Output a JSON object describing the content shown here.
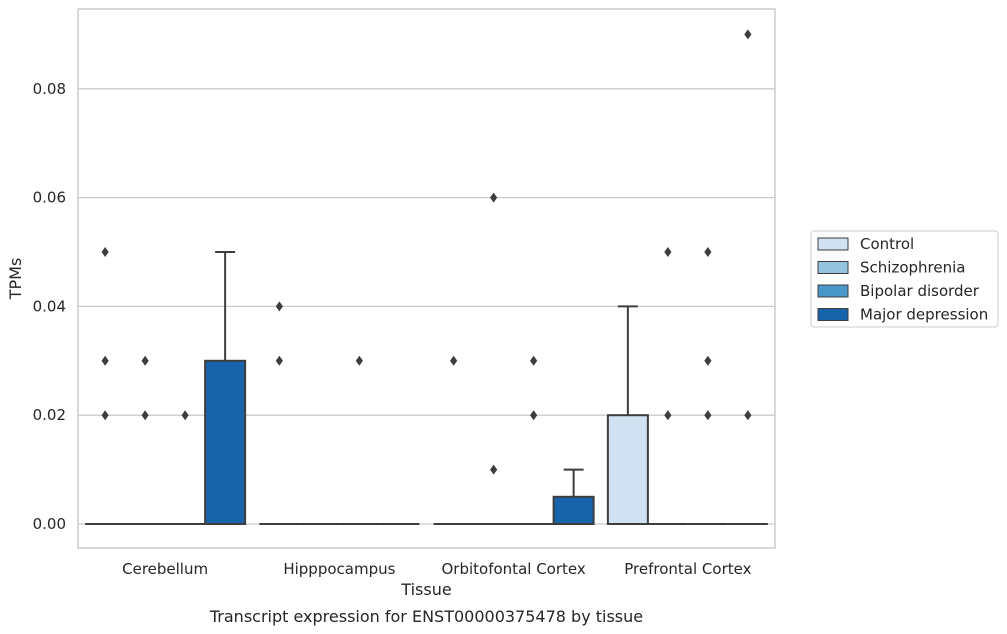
{
  "chart_data": {
    "type": "box",
    "title": "Transcript expression for ENST00000375478 by tissue",
    "xlabel": "Tissue",
    "ylabel": "TPMs",
    "ylim": [
      -0.0045,
      0.0945
    ],
    "yticks": [
      "0.00",
      "0.02",
      "0.04",
      "0.06",
      "0.08"
    ],
    "ytick_values": [
      0,
      0.02,
      0.04,
      0.06,
      0.08
    ],
    "grid": true,
    "legend_position": "right",
    "categories": [
      "Cerebellum",
      "Hipppocampus",
      "Orbitofontal Cortex",
      "Prefrontal Cortex"
    ],
    "series": [
      {
        "name": "Control",
        "color": "#d0e1f2",
        "boxes": [
          {
            "q1": 0,
            "median": 0,
            "q3": 0,
            "whisker_low": 0,
            "whisker_high": 0,
            "outliers": [
              0.02,
              0.03,
              0.05
            ]
          },
          {
            "q1": 0,
            "median": 0,
            "q3": 0,
            "whisker_low": 0,
            "whisker_high": 0,
            "outliers": [
              0.03,
              0.04
            ]
          },
          {
            "q1": 0,
            "median": 0,
            "q3": 0,
            "whisker_low": 0,
            "whisker_high": 0,
            "outliers": [
              0.03
            ]
          },
          {
            "q1": 0,
            "median": 0,
            "q3": 0.02,
            "whisker_low": 0,
            "whisker_high": 0.04,
            "outliers": []
          }
        ]
      },
      {
        "name": "Schizophrenia",
        "color": "#94c4df",
        "boxes": [
          {
            "q1": 0,
            "median": 0,
            "q3": 0,
            "whisker_low": 0,
            "whisker_high": 0,
            "outliers": [
              0.02,
              0.03
            ]
          },
          {
            "q1": 0,
            "median": 0,
            "q3": 0,
            "whisker_low": 0,
            "whisker_high": 0,
            "outliers": []
          },
          {
            "q1": 0,
            "median": 0,
            "q3": 0,
            "whisker_low": 0,
            "whisker_high": 0,
            "outliers": [
              0.01,
              0.06
            ]
          },
          {
            "q1": 0,
            "median": 0,
            "q3": 0,
            "whisker_low": 0,
            "whisker_high": 0,
            "outliers": [
              0.02,
              0.05
            ]
          }
        ]
      },
      {
        "name": "Bipolar disorder",
        "color": "#4a98c9",
        "boxes": [
          {
            "q1": 0,
            "median": 0,
            "q3": 0,
            "whisker_low": 0,
            "whisker_high": 0,
            "outliers": [
              0.02
            ]
          },
          {
            "q1": 0,
            "median": 0,
            "q3": 0,
            "whisker_low": 0,
            "whisker_high": 0,
            "outliers": [
              0.03
            ]
          },
          {
            "q1": 0,
            "median": 0,
            "q3": 0,
            "whisker_low": 0,
            "whisker_high": 0,
            "outliers": [
              0.02,
              0.03
            ]
          },
          {
            "q1": 0,
            "median": 0,
            "q3": 0,
            "whisker_low": 0,
            "whisker_high": 0,
            "outliers": [
              0.02,
              0.03,
              0.05
            ]
          }
        ]
      },
      {
        "name": "Major depression",
        "color": "#1764ab",
        "boxes": [
          {
            "q1": 0,
            "median": 0,
            "q3": 0.03,
            "whisker_low": 0,
            "whisker_high": 0.05,
            "outliers": []
          },
          {
            "q1": 0,
            "median": 0,
            "q3": 0,
            "whisker_low": 0,
            "whisker_high": 0,
            "outliers": []
          },
          {
            "q1": 0,
            "median": 0,
            "q3": 0.005,
            "whisker_low": 0,
            "whisker_high": 0.01,
            "outliers": []
          },
          {
            "q1": 0,
            "median": 0,
            "q3": 0,
            "whisker_low": 0,
            "whisker_high": 0,
            "outliers": [
              0.02,
              0.09
            ]
          }
        ]
      }
    ]
  }
}
